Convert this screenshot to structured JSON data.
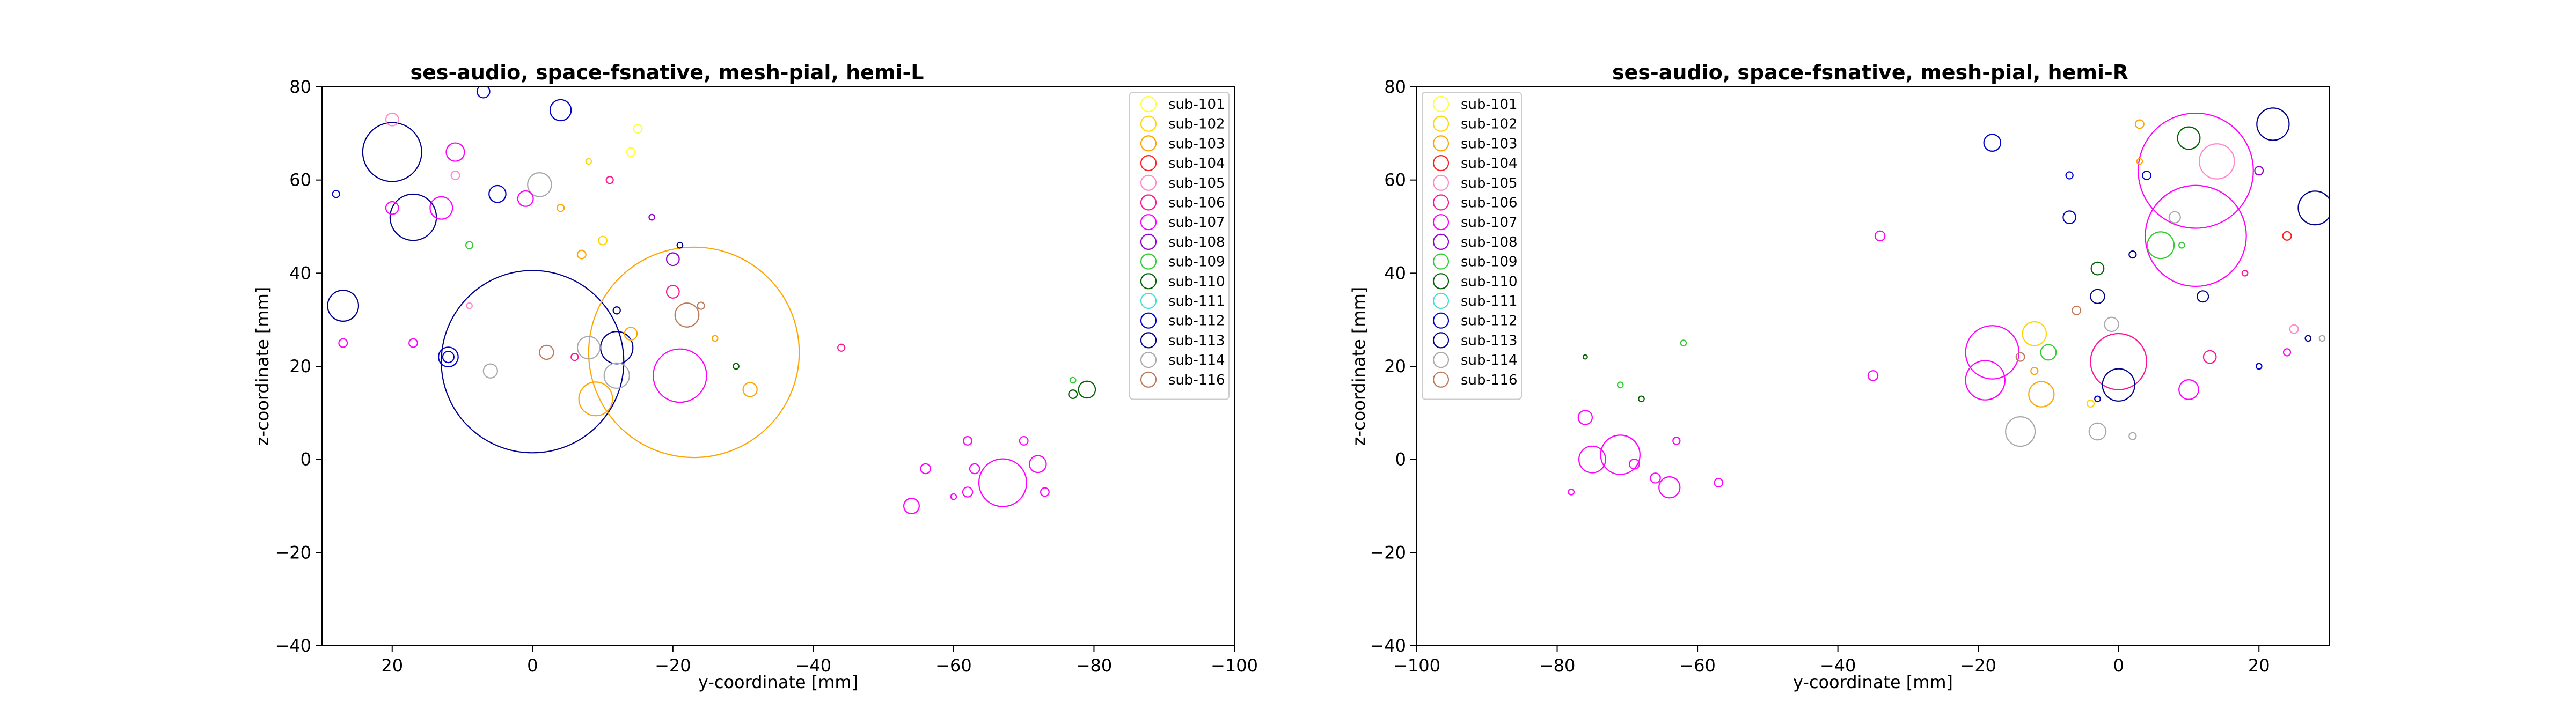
{
  "legend_entries": [
    {
      "label": "sub-101",
      "color": "#ffff33"
    },
    {
      "label": "sub-102",
      "color": "#ffd700"
    },
    {
      "label": "sub-103",
      "color": "#ffa500"
    },
    {
      "label": "sub-104",
      "color": "#ff2020"
    },
    {
      "label": "sub-105",
      "color": "#ff8cc8"
    },
    {
      "label": "sub-106",
      "color": "#ff1493"
    },
    {
      "label": "sub-107",
      "color": "#ff00ff"
    },
    {
      "label": "sub-108",
      "color": "#9400d3"
    },
    {
      "label": "sub-109",
      "color": "#32cd32"
    },
    {
      "label": "sub-110",
      "color": "#006400"
    },
    {
      "label": "sub-111",
      "color": "#40e0d0"
    },
    {
      "label": "sub-112",
      "color": "#0000cd"
    },
    {
      "label": "sub-113",
      "color": "#00008b"
    },
    {
      "label": "sub-114",
      "color": "#a9a9a9"
    },
    {
      "label": "sub-116",
      "color": "#bc7a5a"
    }
  ],
  "chart_data": [
    {
      "type": "scatter",
      "title": "ses-audio, space-fsnative, mesh-pial, hemi-L",
      "xlabel": "y-coordinate [mm]",
      "ylabel": "z-coordinate [mm]",
      "xlim": [
        30,
        -100
      ],
      "ylim": [
        -40,
        80
      ],
      "xticks": [
        20,
        0,
        -20,
        -40,
        -60,
        -80,
        -100
      ],
      "yticks": [
        -40,
        -20,
        0,
        20,
        40,
        60,
        80
      ],
      "grid": false,
      "legend_position": "top-right",
      "points": [
        {
          "s": "sub-113",
          "x": 0,
          "y": 21,
          "r": 13
        },
        {
          "s": "sub-103",
          "x": -23,
          "y": 23,
          "r": 15
        },
        {
          "s": "sub-113",
          "x": 20,
          "y": 66,
          "r": 4.2
        },
        {
          "s": "sub-113",
          "x": 17,
          "y": 52,
          "r": 3.3
        },
        {
          "s": "sub-113",
          "x": 27,
          "y": 33,
          "r": 2.2
        },
        {
          "s": "sub-107",
          "x": -21,
          "y": 18,
          "r": 3.8
        },
        {
          "s": "sub-113",
          "x": -12,
          "y": 24,
          "r": 2.3
        },
        {
          "s": "sub-103",
          "x": -9,
          "y": 13,
          "r": 2.4
        },
        {
          "s": "sub-116",
          "x": -22,
          "y": 31,
          "r": 1.7
        },
        {
          "s": "sub-114",
          "x": -1,
          "y": 59,
          "r": 1.7
        },
        {
          "s": "sub-112",
          "x": -4,
          "y": 75,
          "r": 1.5
        },
        {
          "s": "sub-112",
          "x": 12,
          "y": 22,
          "r": 1.4
        },
        {
          "s": "sub-114",
          "x": -8,
          "y": 24,
          "r": 1.6
        },
        {
          "s": "sub-114",
          "x": -12,
          "y": 18,
          "r": 1.8
        },
        {
          "s": "sub-107",
          "x": 13,
          "y": 54,
          "r": 1.6
        },
        {
          "s": "sub-107",
          "x": 11,
          "y": 66,
          "r": 1.3
        },
        {
          "s": "sub-112",
          "x": 5,
          "y": 57,
          "r": 1.2
        },
        {
          "s": "sub-107",
          "x": -67,
          "y": -5,
          "r": 3.4
        },
        {
          "s": "sub-107",
          "x": -72,
          "y": -1,
          "r": 1.2
        },
        {
          "s": "sub-107",
          "x": -54,
          "y": -10,
          "r": 1.1
        },
        {
          "s": "sub-110",
          "x": -79,
          "y": 15,
          "r": 1.2
        },
        {
          "s": "sub-103",
          "x": -31,
          "y": 15,
          "r": 1.0
        },
        {
          "s": "sub-116",
          "x": -2,
          "y": 23,
          "r": 1.0
        },
        {
          "s": "sub-107",
          "x": 20,
          "y": 54,
          "r": 0.9
        },
        {
          "s": "sub-105",
          "x": 20,
          "y": 73,
          "r": 0.9
        },
        {
          "s": "sub-112",
          "x": 7,
          "y": 79,
          "r": 0.9
        },
        {
          "s": "sub-107",
          "x": 1,
          "y": 56,
          "r": 1.1
        },
        {
          "s": "sub-106",
          "x": -20,
          "y": 36,
          "r": 0.9
        },
        {
          "s": "sub-114",
          "x": 6,
          "y": 19,
          "r": 1.0
        },
        {
          "s": "sub-108",
          "x": -20,
          "y": 43,
          "r": 0.9
        },
        {
          "s": "sub-112",
          "x": 12,
          "y": 22,
          "r": 0.8
        },
        {
          "s": "sub-103",
          "x": -14,
          "y": 27,
          "r": 0.9
        },
        {
          "s": "sub-107",
          "x": -62,
          "y": -7,
          "r": 0.7
        },
        {
          "s": "sub-107",
          "x": -63,
          "y": -2,
          "r": 0.7
        },
        {
          "s": "sub-107",
          "x": -56,
          "y": -2,
          "r": 0.7
        },
        {
          "s": "sub-107",
          "x": -62,
          "y": 4,
          "r": 0.6
        },
        {
          "s": "sub-107",
          "x": -70,
          "y": 4,
          "r": 0.6
        },
        {
          "s": "sub-107",
          "x": -73,
          "y": -7,
          "r": 0.6
        },
        {
          "s": "sub-110",
          "x": -77,
          "y": 14,
          "r": 0.6
        },
        {
          "s": "sub-106",
          "x": -44,
          "y": 24,
          "r": 0.5
        },
        {
          "s": "sub-101",
          "x": -15,
          "y": 71,
          "r": 0.6
        },
        {
          "s": "sub-101",
          "x": -14,
          "y": 66,
          "r": 0.6
        },
        {
          "s": "sub-102",
          "x": -10,
          "y": 47,
          "r": 0.6
        },
        {
          "s": "sub-103",
          "x": -7,
          "y": 44,
          "r": 0.6
        },
        {
          "s": "sub-105",
          "x": 11,
          "y": 61,
          "r": 0.6
        },
        {
          "s": "sub-109",
          "x": 9,
          "y": 46,
          "r": 0.5
        },
        {
          "s": "sub-107",
          "x": 27,
          "y": 25,
          "r": 0.6
        },
        {
          "s": "sub-107",
          "x": 17,
          "y": 25,
          "r": 0.6
        },
        {
          "s": "sub-113",
          "x": -12,
          "y": 32,
          "r": 0.5
        },
        {
          "s": "sub-112",
          "x": 28,
          "y": 57,
          "r": 0.5
        },
        {
          "s": "sub-103",
          "x": -4,
          "y": 54,
          "r": 0.5
        },
        {
          "s": "sub-106",
          "x": -11,
          "y": 60,
          "r": 0.5
        },
        {
          "s": "sub-116",
          "x": -24,
          "y": 33,
          "r": 0.5
        },
        {
          "s": "sub-106",
          "x": -6,
          "y": 22,
          "r": 0.5
        },
        {
          "s": "sub-110",
          "x": -29,
          "y": 20,
          "r": 0.4
        },
        {
          "s": "sub-113",
          "x": -21,
          "y": 46,
          "r": 0.4
        },
        {
          "s": "sub-108",
          "x": -17,
          "y": 52,
          "r": 0.4
        },
        {
          "s": "sub-103",
          "x": -26,
          "y": 26,
          "r": 0.4
        },
        {
          "s": "sub-109",
          "x": -77,
          "y": 17,
          "r": 0.4
        },
        {
          "s": "sub-107",
          "x": -60,
          "y": -8,
          "r": 0.4
        },
        {
          "s": "sub-105",
          "x": 9,
          "y": 33,
          "r": 0.4
        },
        {
          "s": "sub-102",
          "x": -8,
          "y": 64,
          "r": 0.4
        }
      ]
    },
    {
      "type": "scatter",
      "title": "ses-audio, space-fsnative, mesh-pial, hemi-R",
      "xlabel": "y-coordinate [mm]",
      "ylabel": "z-coordinate [mm]",
      "xlim": [
        -100,
        30
      ],
      "ylim": [
        -40,
        80
      ],
      "xticks": [
        -100,
        -80,
        -60,
        -40,
        -20,
        0,
        20
      ],
      "yticks": [
        -40,
        -20,
        0,
        20,
        40,
        60,
        80
      ],
      "grid": false,
      "legend_position": "top-left",
      "points": [
        {
          "s": "sub-107",
          "x": 11,
          "y": 62,
          "r": 8.2
        },
        {
          "s": "sub-107",
          "x": 11,
          "y": 48,
          "r": 7.2
        },
        {
          "s": "sub-107",
          "x": -18,
          "y": 23,
          "r": 3.8
        },
        {
          "s": "sub-107",
          "x": -71,
          "y": 1,
          "r": 2.8
        },
        {
          "s": "sub-107",
          "x": -19,
          "y": 17,
          "r": 2.8
        },
        {
          "s": "sub-106",
          "x": 0,
          "y": 21,
          "r": 4.0
        },
        {
          "s": "sub-105",
          "x": 14,
          "y": 64,
          "r": 2.5
        },
        {
          "s": "sub-113",
          "x": 22,
          "y": 72,
          "r": 2.3
        },
        {
          "s": "sub-113",
          "x": 28,
          "y": 54,
          "r": 2.4
        },
        {
          "s": "sub-113",
          "x": 0,
          "y": 16,
          "r": 2.3
        },
        {
          "s": "sub-110",
          "x": 10,
          "y": 69,
          "r": 1.6
        },
        {
          "s": "sub-109",
          "x": 6,
          "y": 46,
          "r": 1.9
        },
        {
          "s": "sub-114",
          "x": -14,
          "y": 6,
          "r": 2.1
        },
        {
          "s": "sub-103",
          "x": -11,
          "y": 14,
          "r": 1.8
        },
        {
          "s": "sub-102",
          "x": -12,
          "y": 27,
          "r": 1.7
        },
        {
          "s": "sub-107",
          "x": -75,
          "y": 0,
          "r": 1.9
        },
        {
          "s": "sub-107",
          "x": -64,
          "y": -6,
          "r": 1.5
        },
        {
          "s": "sub-107",
          "x": 10,
          "y": 15,
          "r": 1.4
        },
        {
          "s": "sub-112",
          "x": -18,
          "y": 68,
          "r": 1.2
        },
        {
          "s": "sub-114",
          "x": -3,
          "y": 6,
          "r": 1.2
        },
        {
          "s": "sub-109",
          "x": -10,
          "y": 23,
          "r": 1.1
        },
        {
          "s": "sub-107",
          "x": -76,
          "y": 9,
          "r": 1.0
        },
        {
          "s": "sub-114",
          "x": -1,
          "y": 29,
          "r": 1.0
        },
        {
          "s": "sub-112",
          "x": -7,
          "y": 52,
          "r": 0.9
        },
        {
          "s": "sub-113",
          "x": -3,
          "y": 35,
          "r": 1.0
        },
        {
          "s": "sub-110",
          "x": -3,
          "y": 41,
          "r": 0.9
        },
        {
          "s": "sub-106",
          "x": 13,
          "y": 22,
          "r": 0.9
        },
        {
          "s": "sub-107",
          "x": -34,
          "y": 48,
          "r": 0.7
        },
        {
          "s": "sub-107",
          "x": -35,
          "y": 18,
          "r": 0.7
        },
        {
          "s": "sub-107",
          "x": -66,
          "y": -4,
          "r": 0.7
        },
        {
          "s": "sub-107",
          "x": -69,
          "y": -1,
          "r": 0.7
        },
        {
          "s": "sub-107",
          "x": -57,
          "y": -5,
          "r": 0.6
        },
        {
          "s": "sub-113",
          "x": 12,
          "y": 35,
          "r": 0.8
        },
        {
          "s": "sub-114",
          "x": 8,
          "y": 52,
          "r": 0.8
        },
        {
          "s": "sub-112",
          "x": 4,
          "y": 61,
          "r": 0.6
        },
        {
          "s": "sub-103",
          "x": 3,
          "y": 72,
          "r": 0.6
        },
        {
          "s": "sub-108",
          "x": 20,
          "y": 62,
          "r": 0.6
        },
        {
          "s": "sub-104",
          "x": 24,
          "y": 48,
          "r": 0.6
        },
        {
          "s": "sub-116",
          "x": -6,
          "y": 32,
          "r": 0.6
        },
        {
          "s": "sub-110",
          "x": -68,
          "y": 13,
          "r": 0.4
        },
        {
          "s": "sub-109",
          "x": -62,
          "y": 25,
          "r": 0.4
        },
        {
          "s": "sub-109",
          "x": -71,
          "y": 16,
          "r": 0.4
        },
        {
          "s": "sub-105",
          "x": 25,
          "y": 28,
          "r": 0.6
        },
        {
          "s": "sub-107",
          "x": 24,
          "y": 23,
          "r": 0.5
        },
        {
          "s": "sub-112",
          "x": -7,
          "y": 61,
          "r": 0.5
        },
        {
          "s": "sub-113",
          "x": 2,
          "y": 44,
          "r": 0.5
        },
        {
          "s": "sub-102",
          "x": -4,
          "y": 12,
          "r": 0.5
        },
        {
          "s": "sub-116",
          "x": -14,
          "y": 22,
          "r": 0.6
        },
        {
          "s": "sub-107",
          "x": -63,
          "y": 4,
          "r": 0.5
        },
        {
          "s": "sub-107",
          "x": -78,
          "y": -7,
          "r": 0.4
        },
        {
          "s": "sub-110",
          "x": -76,
          "y": 22,
          "r": 0.3
        },
        {
          "s": "sub-114",
          "x": 2,
          "y": 5,
          "r": 0.5
        },
        {
          "s": "sub-103",
          "x": -12,
          "y": 19,
          "r": 0.5
        },
        {
          "s": "sub-112",
          "x": 20,
          "y": 20,
          "r": 0.4
        },
        {
          "s": "sub-114",
          "x": 29,
          "y": 26,
          "r": 0.4
        },
        {
          "s": "sub-113",
          "x": 27,
          "y": 26,
          "r": 0.4
        },
        {
          "s": "sub-109",
          "x": 9,
          "y": 46,
          "r": 0.4
        },
        {
          "s": "sub-106",
          "x": 18,
          "y": 40,
          "r": 0.4
        },
        {
          "s": "sub-112",
          "x": -3,
          "y": 13,
          "r": 0.4
        },
        {
          "s": "sub-103",
          "x": 3,
          "y": 64,
          "r": 0.4
        }
      ]
    }
  ]
}
